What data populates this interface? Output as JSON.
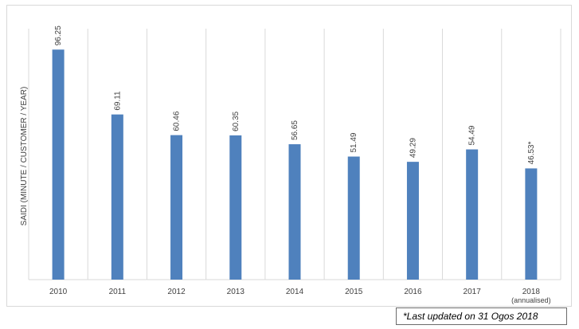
{
  "chart_data": {
    "type": "bar",
    "ylabel": "SAIDI (MINUTE / CUSTOMER / YEAR)",
    "xlabel": "",
    "title": "",
    "ylim": [
      0,
      105
    ],
    "grid": "vertical",
    "bar_color": "#4f81bd",
    "categories": [
      "2010",
      "2011",
      "2012",
      "2013",
      "2014",
      "2015",
      "2016",
      "2017",
      "2018"
    ],
    "category_sublabels": [
      "",
      "",
      "",
      "",
      "",
      "",
      "",
      "",
      "(annualised)"
    ],
    "values": [
      96.25,
      69.11,
      60.46,
      60.35,
      56.65,
      51.49,
      49.29,
      54.49,
      46.53
    ],
    "data_labels": [
      "96.25",
      "69.11",
      "60.46",
      "60.35",
      "56.65",
      "51.49",
      "49.29",
      "54.49",
      "46.53*"
    ]
  },
  "footnote": "*Last updated on 31 Ogos 2018"
}
